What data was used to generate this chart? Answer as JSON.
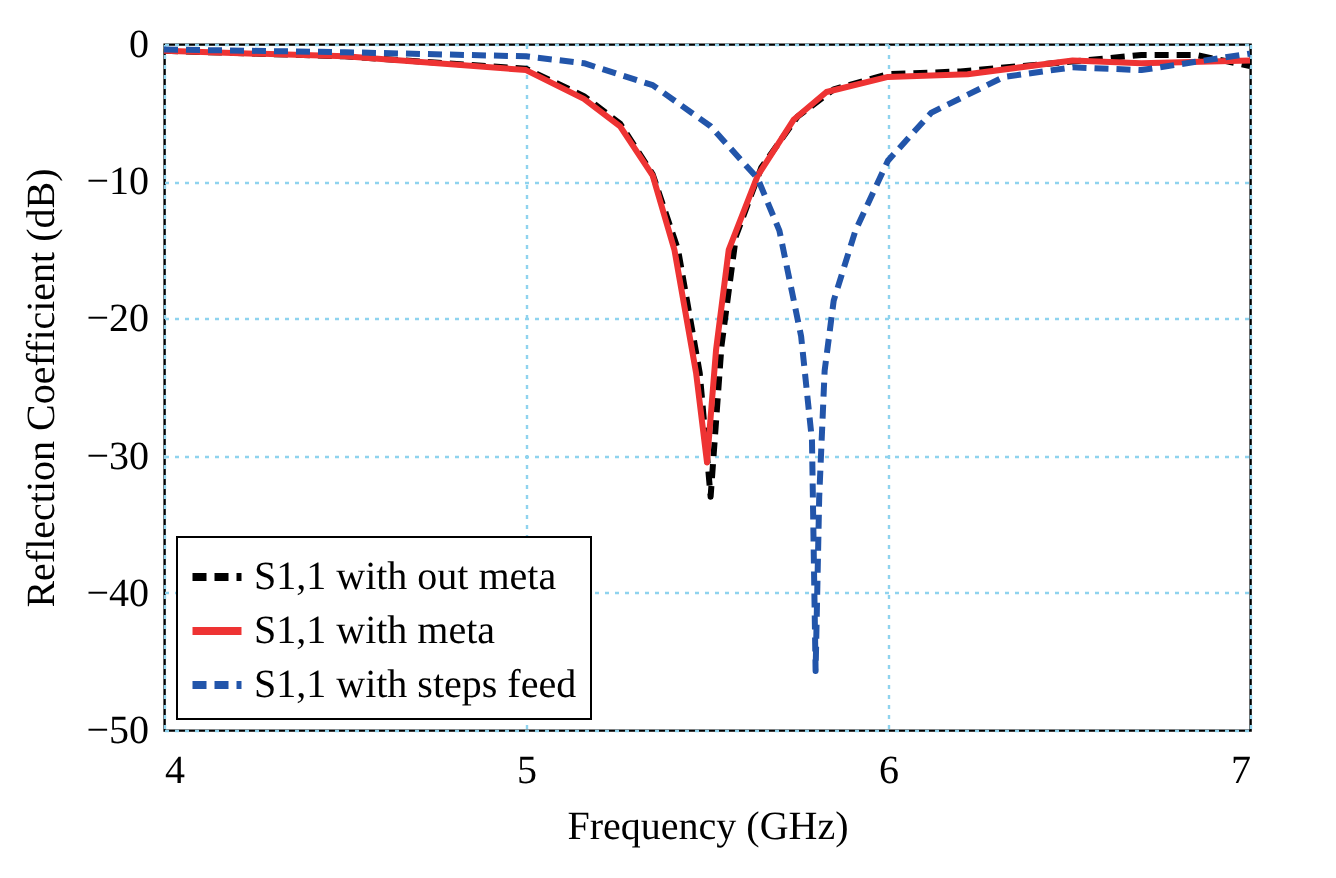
{
  "chart_data": {
    "type": "line",
    "xlabel": "Frequency (GHz)",
    "ylabel": "Reflection Coefficient (dB)",
    "xlim": [
      4,
      7
    ],
    "ylim": [
      -50,
      0
    ],
    "xticks": [
      4,
      5,
      6,
      7
    ],
    "yticks": [
      -50,
      -40,
      -30,
      -20,
      -10,
      0
    ],
    "grid": true,
    "legend": "bottom left",
    "marker": "none",
    "series": [
      {
        "name": "S1,1 with out meta",
        "color": "#000000",
        "line_style": "dashed",
        "x": [
          4,
          4.5,
          5,
          5.16,
          5.26,
          5.35,
          5.42,
          5.48,
          5.51,
          5.54,
          5.58,
          5.65,
          5.75,
          5.85,
          6,
          6.2,
          6.5,
          6.7,
          6.85,
          7
        ],
        "values": [
          -0.5,
          -0.9,
          -1.8,
          -3.8,
          -5.8,
          -9.5,
          -15,
          -24,
          -33,
          -22,
          -14,
          -9,
          -5.3,
          -3.3,
          -2.2,
          -2,
          -1.3,
          -0.8,
          -0.8,
          -1.6
        ]
      },
      {
        "name": "S1,1 with meta",
        "color": "#ee3333",
        "line_style": "solid",
        "x": [
          4,
          4.5,
          5,
          5.16,
          5.26,
          5.35,
          5.41,
          5.47,
          5.5,
          5.525,
          5.56,
          5.64,
          5.74,
          5.83,
          6,
          6.22,
          6.51,
          6.7,
          7
        ],
        "values": [
          -0.5,
          -0.9,
          -1.9,
          -4,
          -6,
          -9.6,
          -15,
          -24,
          -30.5,
          -22.3,
          -15,
          -9.6,
          -5.5,
          -3.5,
          -2.4,
          -2.2,
          -1.2,
          -1.4,
          -1.2
        ]
      },
      {
        "name": "S1,1 with steps feed",
        "color": "#2255aa",
        "line_style": "dashed",
        "x": [
          4,
          4.5,
          5,
          5.16,
          5.35,
          5.51,
          5.64,
          5.7,
          5.76,
          5.79,
          5.8,
          5.81,
          5.825,
          5.85,
          5.91,
          6,
          6.12,
          6.32,
          6.51,
          6.7,
          7
        ],
        "values": [
          -0.4,
          -0.6,
          -0.9,
          -1.4,
          -3,
          -6,
          -9.8,
          -13.6,
          -21.3,
          -28.9,
          -45.7,
          -33,
          -23.8,
          -18.7,
          -13.6,
          -8.5,
          -5,
          -2.4,
          -1.7,
          -1.9,
          -0.7
        ]
      }
    ]
  }
}
